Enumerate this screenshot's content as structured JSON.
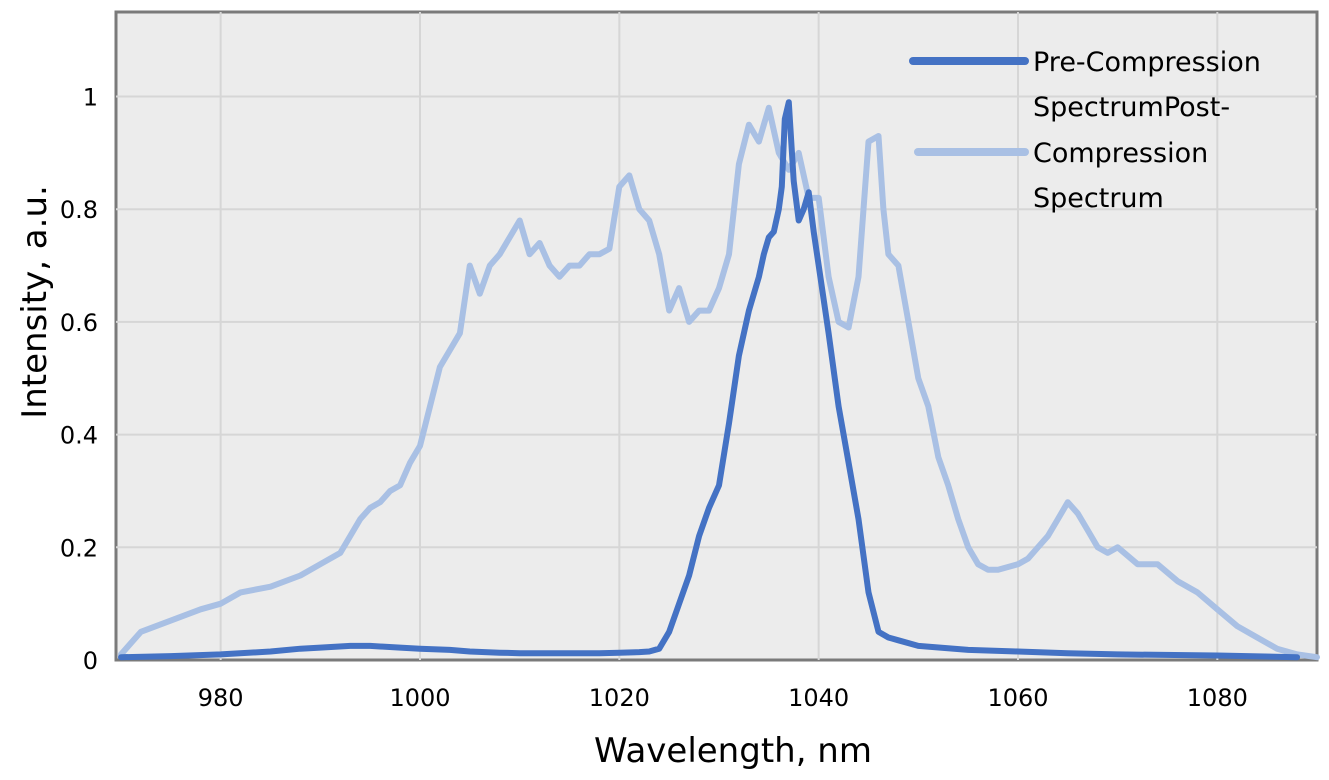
{
  "chart_data": {
    "type": "line",
    "title": "",
    "xlabel": "Wavelength, nm",
    "ylabel": "Intensity, a.u.",
    "xlim": [
      969.5,
      1090
    ],
    "ylim": [
      0,
      1.15
    ],
    "x_ticks": [
      980,
      1000,
      1020,
      1040,
      1060,
      1080
    ],
    "x_tick_labels": [
      "980",
      "1000",
      "1020",
      "1040",
      "1060",
      "1080"
    ],
    "y_ticks": [
      0,
      0.2,
      0.4,
      0.6,
      0.8,
      1
    ],
    "y_tick_labels": [
      "0",
      "0.2",
      "0.4",
      "0.6",
      "0.8",
      "1"
    ],
    "grid": true,
    "legend_placement": "top-right",
    "legend_lines": [
      "Pre-Compression",
      "SpectrumPost-",
      "Compression",
      "Spectrum"
    ],
    "series": [
      {
        "name": "Pre-Compression Spectrum",
        "color": "#4472c4",
        "x": [
          970,
          975,
          980,
          985,
          988,
          990,
          993,
          995,
          998,
          1000,
          1003,
          1005,
          1008,
          1010,
          1013,
          1015,
          1018,
          1020,
          1022,
          1023,
          1024,
          1025,
          1026,
          1027,
          1028,
          1029,
          1030,
          1031,
          1032,
          1033,
          1034,
          1034.5,
          1035,
          1035.5,
          1036,
          1036.3,
          1036.6,
          1037,
          1037.5,
          1038,
          1038.5,
          1039,
          1039.5,
          1040,
          1041,
          1042,
          1043,
          1044,
          1045,
          1046,
          1047,
          1048,
          1050,
          1055,
          1060,
          1065,
          1070,
          1080,
          1088
        ],
        "y": [
          0.005,
          0.007,
          0.01,
          0.015,
          0.02,
          0.022,
          0.025,
          0.025,
          0.022,
          0.02,
          0.018,
          0.015,
          0.013,
          0.012,
          0.012,
          0.012,
          0.012,
          0.013,
          0.014,
          0.015,
          0.02,
          0.05,
          0.1,
          0.15,
          0.22,
          0.27,
          0.31,
          0.42,
          0.54,
          0.62,
          0.68,
          0.72,
          0.75,
          0.76,
          0.8,
          0.84,
          0.96,
          0.99,
          0.85,
          0.78,
          0.8,
          0.83,
          0.76,
          0.7,
          0.58,
          0.45,
          0.35,
          0.25,
          0.12,
          0.05,
          0.04,
          0.035,
          0.025,
          0.018,
          0.015,
          0.012,
          0.01,
          0.008,
          0.005
        ]
      },
      {
        "name": "Post-Compression Spectrum",
        "color": "#a9c0e4",
        "x": [
          970,
          972,
          975,
          978,
          980,
          982,
          985,
          988,
          990,
          992,
          994,
          995,
          996,
          997,
          998,
          999,
          1000,
          1001,
          1002,
          1003,
          1004,
          1005,
          1006,
          1007,
          1008,
          1009,
          1010,
          1011,
          1012,
          1013,
          1014,
          1015,
          1016,
          1017,
          1018,
          1019,
          1020,
          1021,
          1022,
          1023,
          1024,
          1025,
          1026,
          1027,
          1028,
          1029,
          1030,
          1031,
          1032,
          1033,
          1034,
          1035,
          1036,
          1037,
          1038,
          1039,
          1040,
          1041,
          1042,
          1043,
          1044,
          1045,
          1046,
          1046.5,
          1047,
          1048,
          1049,
          1050,
          1051,
          1052,
          1053,
          1054,
          1055,
          1056,
          1057,
          1058,
          1059,
          1060,
          1061,
          1062,
          1063,
          1064,
          1065,
          1066,
          1067,
          1068,
          1069,
          1070,
          1072,
          1074,
          1076,
          1078,
          1080,
          1082,
          1084,
          1086,
          1088,
          1090
        ],
        "y": [
          0.01,
          0.05,
          0.07,
          0.09,
          0.1,
          0.12,
          0.13,
          0.15,
          0.17,
          0.19,
          0.25,
          0.27,
          0.28,
          0.3,
          0.31,
          0.35,
          0.38,
          0.45,
          0.52,
          0.55,
          0.58,
          0.7,
          0.65,
          0.7,
          0.72,
          0.75,
          0.78,
          0.72,
          0.74,
          0.7,
          0.68,
          0.7,
          0.7,
          0.72,
          0.72,
          0.73,
          0.84,
          0.86,
          0.8,
          0.78,
          0.72,
          0.62,
          0.66,
          0.6,
          0.62,
          0.62,
          0.66,
          0.72,
          0.88,
          0.95,
          0.92,
          0.98,
          0.9,
          0.87,
          0.9,
          0.82,
          0.82,
          0.68,
          0.6,
          0.59,
          0.68,
          0.92,
          0.93,
          0.8,
          0.72,
          0.7,
          0.6,
          0.5,
          0.45,
          0.36,
          0.31,
          0.25,
          0.2,
          0.17,
          0.16,
          0.16,
          0.165,
          0.17,
          0.18,
          0.2,
          0.22,
          0.25,
          0.28,
          0.26,
          0.23,
          0.2,
          0.19,
          0.2,
          0.17,
          0.17,
          0.14,
          0.12,
          0.09,
          0.06,
          0.04,
          0.02,
          0.01,
          0.005
        ]
      }
    ]
  }
}
